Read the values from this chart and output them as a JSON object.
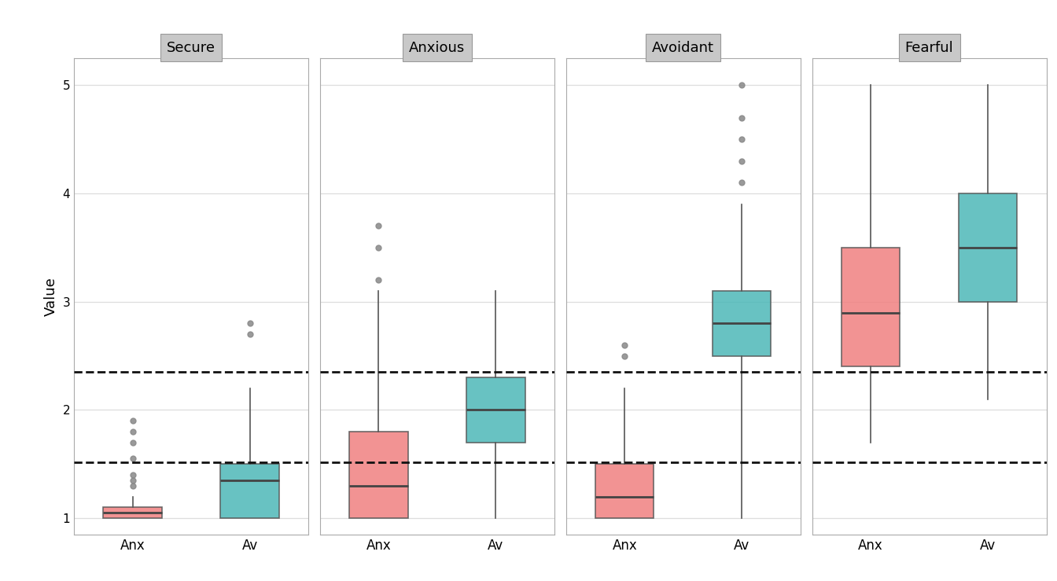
{
  "panels": [
    "Secure",
    "Anxious",
    "Avoidant",
    "Fearful"
  ],
  "categories": [
    "Anx",
    "Av"
  ],
  "anx_color": "#F08080",
  "av_color": "#4DB8B8",
  "overall_avg_anx": 1.52,
  "overall_avg_av": 2.35,
  "boxes": {
    "Secure": {
      "Anx": {
        "q1": 1.0,
        "median": 1.05,
        "q3": 1.1,
        "whislo": 1.0,
        "whishi": 1.2,
        "fliers": [
          1.3,
          1.35,
          1.4,
          1.55,
          1.7,
          1.8,
          1.9
        ]
      },
      "Av": {
        "q1": 1.0,
        "median": 1.35,
        "q3": 1.5,
        "whislo": 1.0,
        "whishi": 2.2,
        "fliers": [
          2.7,
          2.8
        ]
      }
    },
    "Anxious": {
      "Anx": {
        "q1": 1.0,
        "median": 1.3,
        "q3": 1.8,
        "whislo": 1.0,
        "whishi": 3.1,
        "fliers": [
          3.2,
          3.5,
          3.7
        ]
      },
      "Av": {
        "q1": 1.7,
        "median": 2.0,
        "q3": 2.3,
        "whislo": 1.0,
        "whishi": 3.1,
        "fliers": []
      }
    },
    "Avoidant": {
      "Anx": {
        "q1": 1.0,
        "median": 1.2,
        "q3": 1.5,
        "whislo": 1.0,
        "whishi": 2.2,
        "fliers": [
          2.5,
          2.6
        ]
      },
      "Av": {
        "q1": 2.5,
        "median": 2.8,
        "q3": 3.1,
        "whislo": 1.0,
        "whishi": 3.9,
        "fliers": [
          4.1,
          4.3,
          4.5,
          4.7,
          5.0
        ]
      }
    },
    "Fearful": {
      "Anx": {
        "q1": 2.4,
        "median": 2.9,
        "q3": 3.5,
        "whislo": 1.7,
        "whishi": 5.0,
        "fliers": []
      },
      "Av": {
        "q1": 3.0,
        "median": 3.5,
        "q3": 4.0,
        "whislo": 2.1,
        "whishi": 5.0,
        "fliers": []
      }
    }
  },
  "ylabel": "Value",
  "ylim": [
    0.85,
    5.25
  ],
  "yticks": [
    1,
    2,
    3,
    4,
    5
  ],
  "background_color": "#FFFFFF",
  "panel_header_color": "#C8C8C8",
  "grid_color": "#DDDDDD",
  "box_width": 0.5,
  "median_color": "#444444",
  "whisker_color": "#555555",
  "flier_color": "#888888",
  "dashed_line_color": "#111111"
}
